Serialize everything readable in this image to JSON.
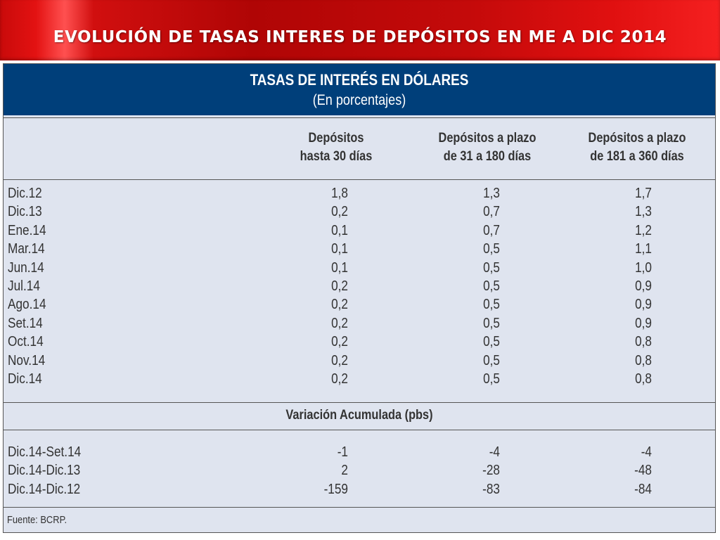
{
  "slide": {
    "title": "EVOLUCIÓN DE TASAS INTERES DE DEPÓSITOS EN ME A DIC 2014"
  },
  "table": {
    "title": "TASAS DE INTERÉS EN DÓLARES",
    "subtitle": "(En porcentajes)",
    "columns": [
      {
        "line1": "Depósitos",
        "line2": "hasta 30 días"
      },
      {
        "line1": "Depósitos a plazo",
        "line2": "de 31 a 180 días"
      },
      {
        "line1": "Depósitos a plazo",
        "line2": "de 181 a 360 días"
      }
    ],
    "rows": [
      {
        "label": "Dic.12",
        "values": [
          "1,8",
          "1,3",
          "1,7"
        ]
      },
      {
        "label": "Dic.13",
        "values": [
          "0,2",
          "0,7",
          "1,3"
        ]
      },
      {
        "label": "Ene.14",
        "values": [
          "0,1",
          "0,7",
          "1,2"
        ]
      },
      {
        "label": "Mar.14",
        "values": [
          "0,1",
          "0,5",
          "1,1"
        ]
      },
      {
        "label": "Jun.14",
        "values": [
          "0,1",
          "0,5",
          "1,0"
        ]
      },
      {
        "label": "Jul.14",
        "values": [
          "0,2",
          "0,5",
          "0,9"
        ]
      },
      {
        "label": "Ago.14",
        "values": [
          "0,2",
          "0,5",
          "0,9"
        ]
      },
      {
        "label": "Set.14",
        "values": [
          "0,2",
          "0,5",
          "0,9"
        ]
      },
      {
        "label": "Oct.14",
        "values": [
          "0,2",
          "0,5",
          "0,8"
        ]
      },
      {
        "label": "Nov.14",
        "values": [
          "0,2",
          "0,5",
          "0,8"
        ]
      },
      {
        "label": "Dic.14",
        "values": [
          "0,2",
          "0,5",
          "0,8"
        ]
      }
    ],
    "variation_title": "Variación Acumulada (pbs)",
    "variation_rows": [
      {
        "label": "Dic.14-Set.14",
        "values": [
          "-1",
          "-4",
          "-4"
        ]
      },
      {
        "label": "Dic.14-Dic.13",
        "values": [
          "2",
          "-28",
          "-48"
        ]
      },
      {
        "label": "Dic.14-Dic.12",
        "values": [
          "-159",
          "-83",
          "-84"
        ]
      }
    ],
    "source": "Fuente: BCRP."
  }
}
